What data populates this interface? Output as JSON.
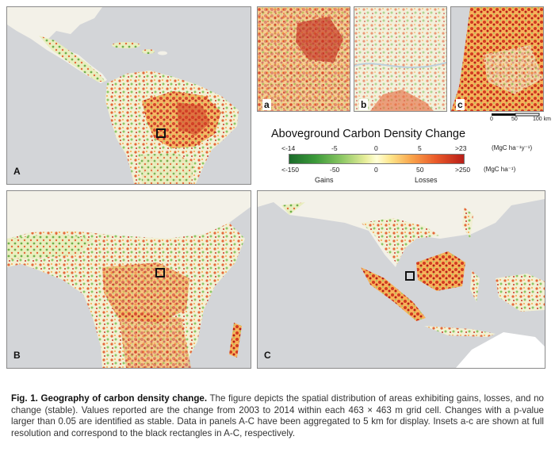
{
  "panels": {
    "A": "A",
    "B": "B",
    "C": "C"
  },
  "insets": {
    "a": "a",
    "b": "b",
    "c": "c",
    "scale": {
      "zero": "0",
      "mid": "50",
      "max": "100 km"
    }
  },
  "legend": {
    "title": "Aboveground Carbon Density Change",
    "rate_ticks": [
      "<-14",
      "-5",
      "0",
      "5",
      ">23"
    ],
    "rate_unit": "(MgC ha⁻¹y⁻¹)",
    "total_ticks": [
      "<-150",
      "-50",
      "0",
      "50",
      ">250"
    ],
    "total_unit": "(MgC ha⁻¹)",
    "gains_label": "Gains",
    "losses_label": "Losses",
    "colors": {
      "gain_dark": "#1a6b2a",
      "gain": "#8cc764",
      "stable": "#ffffd8",
      "loss": "#f9a44b",
      "loss_dark": "#b81e18",
      "land_nodata": "#f3f1e8",
      "ocean": "#d3d5d8"
    }
  },
  "caption": {
    "title": "Fig. 1. Geography of carbon density change.",
    "body": " The figure depicts the spatial distribution of areas exhibiting gains, losses, and no change (stable). Values reported are the change from 2003 to 2014 within each 463 × 463 m grid cell. Changes with a p-value larger than 0.05 are identified as stable. Data in panels A-C have been aggregated to 5 km for display. Insets a-c are shown at full resolution and correspond to the black rectangles in A-C, respectively."
  }
}
